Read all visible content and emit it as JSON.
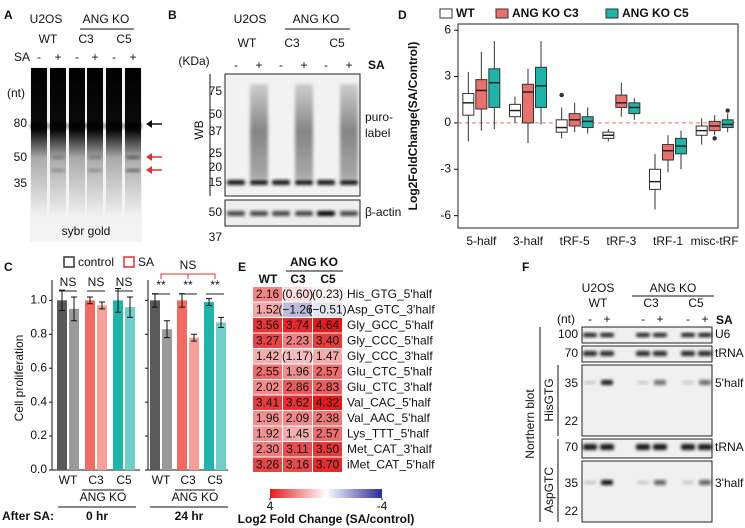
{
  "figure": {
    "panel_labels": [
      "A",
      "B",
      "C",
      "D",
      "E",
      "F"
    ],
    "gel_a": {
      "cell_line": "U2OS",
      "group": "ANG KO",
      "lanes": [
        "WT",
        "C3",
        "C5"
      ],
      "treatment": "SA",
      "signs": [
        "-",
        "+",
        "-",
        "+",
        "-",
        "+"
      ],
      "unit": "(nt)",
      "markers": [
        "80",
        "50",
        "35"
      ],
      "stain": "sybr gold"
    },
    "blot_b": {
      "cell_line": "U2OS",
      "group": "ANG KO",
      "lanes": [
        "WT",
        "C3",
        "C5"
      ],
      "treatment": "SA",
      "signs": [
        "-",
        "+",
        "-",
        "+",
        "-",
        "+"
      ],
      "unit": "(KDa)",
      "method": "WB",
      "markers": [
        "75",
        "50",
        "37",
        "25",
        "20",
        "15"
      ],
      "probe": [
        "puro-",
        "label"
      ],
      "loading_markers": [
        "50",
        "37"
      ],
      "loading": "β-actin"
    },
    "blot_f": {
      "cell_line": "U2OS",
      "group": "ANG KO",
      "lanes": [
        "WT",
        "C3",
        "C5"
      ],
      "treatment": "SA",
      "signs": [
        "-",
        "+",
        "-",
        "+",
        "-",
        "+"
      ],
      "unit": "(nt)",
      "method": "Northern blot",
      "probes": [
        "HisGTG",
        "AspGTC"
      ],
      "markers": [
        "100",
        "70",
        "35",
        "22",
        "70",
        "35",
        "22"
      ],
      "bands": [
        "U6",
        "tRNA",
        "5'half",
        "tRNA",
        "3'half"
      ]
    }
  },
  "chart_data": [
    {
      "type": "box",
      "ylabel": "Log2FoldChange(SA/Control)",
      "categories": [
        "5-half",
        "3-half",
        "tRF-5",
        "tRF-3",
        "tRF-1",
        "misc-tRF"
      ],
      "ylim": [
        -6.8,
        6.4
      ],
      "yticks": [
        6,
        3,
        0,
        -3,
        -6
      ],
      "hline": 0,
      "hline_color": "#e8716b",
      "series": [
        {
          "name": "WT",
          "color": "#ffffff",
          "low": [
            -1.2,
            0.0,
            -1.0,
            -1.2,
            -5.6,
            -1.4
          ],
          "q1": [
            0.5,
            0.4,
            -0.6,
            -1.0,
            -4.3,
            -0.8
          ],
          "median": [
            1.3,
            0.8,
            -0.3,
            -0.8,
            -3.8,
            -0.5
          ],
          "q3": [
            1.9,
            1.2,
            0.2,
            -0.6,
            -3.0,
            -0.2
          ],
          "high": [
            3.3,
            1.7,
            1.0,
            -0.4,
            -2.0,
            0.3
          ],
          "outliers": [
            [],
            [],
            [
              1.8
            ],
            [],
            [],
            []
          ]
        },
        {
          "name": "ANG KO C3",
          "color": "#e8716b",
          "low": [
            -0.5,
            -1.3,
            -0.6,
            0.4,
            -3.2,
            -0.8
          ],
          "q1": [
            0.9,
            0.0,
            -0.2,
            1.0,
            -2.4,
            -0.5
          ],
          "median": [
            2.1,
            2.0,
            0.2,
            1.3,
            -1.8,
            -0.2
          ],
          "q3": [
            2.8,
            2.5,
            0.6,
            1.8,
            -1.4,
            0.1
          ],
          "high": [
            4.6,
            3.5,
            1.3,
            2.6,
            -0.8,
            0.5
          ],
          "outliers": [
            [],
            [],
            [],
            [],
            [],
            [
              -1.0
            ]
          ]
        },
        {
          "name": "ANG KO C5",
          "color": "#1fb3aa",
          "low": [
            -0.4,
            -0.1,
            -0.7,
            0.2,
            -3.0,
            -0.6
          ],
          "q1": [
            1.0,
            1.0,
            -0.3,
            0.6,
            -2.0,
            -0.3
          ],
          "median": [
            2.6,
            2.4,
            0.1,
            1.0,
            -1.5,
            -0.1
          ],
          "q3": [
            3.5,
            3.6,
            0.4,
            1.3,
            -1.0,
            0.2
          ],
          "high": [
            5.3,
            5.3,
            1.0,
            1.6,
            -0.5,
            0.6
          ],
          "outliers": [
            [],
            [],
            [],
            [],
            [],
            [
              0.8
            ]
          ]
        }
      ]
    },
    {
      "type": "bar",
      "ylabel": "Cell proliferation",
      "categories": [
        "WT",
        "C3",
        "C5",
        "WT",
        "C3",
        "C5"
      ],
      "category_colors": [
        "#666666",
        "#e8716b",
        "#1fb3aa",
        "#666666",
        "#e8716b",
        "#1fb3aa"
      ],
      "ylim": [
        0,
        1.12
      ],
      "yticks": [
        {
          "value": 0,
          "label": "0.0"
        },
        0.2,
        0.4,
        0.6,
        0.8,
        {
          "value": 1,
          "label": "1.0"
        }
      ],
      "series": [
        {
          "name": "control",
          "color": "#333333",
          "colors": [
            "#5a5a5a",
            "#f26b63",
            "#1fb3aa",
            "#5a5a5a",
            "#f26b63",
            "#1fb3aa"
          ],
          "values": [
            1.0,
            1.0,
            1.0,
            1.0,
            1.0,
            0.99
          ],
          "errors": [
            0.06,
            0.02,
            0.07,
            0.04,
            0.04,
            0.02
          ]
        },
        {
          "name": "SA",
          "color": "#e03030",
          "colors": [
            "#9a9a9a",
            "#f5a09a",
            "#6fcfc8",
            "#9a9a9a",
            "#f5a09a",
            "#6fcfc8"
          ],
          "values": [
            0.95,
            0.97,
            0.96,
            0.83,
            0.78,
            0.87
          ],
          "errors": [
            0.07,
            0.02,
            0.06,
            0.05,
            0.02,
            0.03
          ]
        }
      ],
      "annotations": [
        "NS",
        "NS",
        "NS",
        "**",
        "**",
        "**",
        "NS"
      ],
      "annotation_colors": [
        "#222222",
        "#222222",
        "#222222",
        "#222222",
        "#222222",
        "#222222",
        "#e03030"
      ],
      "group_labels": [
        "ANG KO",
        "ANG KO"
      ],
      "time_label": "After SA:",
      "times": [
        "0 hr",
        "24 hr"
      ]
    },
    {
      "type": "heatmap",
      "column_group": "ANG KO",
      "columns": [
        "WT",
        "C3",
        "C5"
      ],
      "rows": [
        "His_GTG_5'half",
        "Asp_GTC_3'half",
        "Gly_GCC_5'half",
        "Gly_CCC_5'half",
        "Gly_CCC_3'half",
        "Glu_CTC_5'half",
        "Glu_CTC_3'half",
        "Val_CAC_5'half",
        "Val_AAC_5'half",
        "Lys_TTT_5'half",
        "Met_CAT_3'half",
        "iMet_CAT_5'half"
      ],
      "row_colors": [
        "#e03030",
        "#e03030",
        "#333333",
        "#333333",
        "#333333",
        "#333333",
        "#333333",
        "#333333",
        "#333333",
        "#333333",
        "#333333",
        "#333333"
      ],
      "values": [
        [
          2.16,
          0.6,
          0.23
        ],
        [
          1.52,
          -1.26,
          -0.51
        ],
        [
          3.56,
          3.74,
          4.64
        ],
        [
          3.27,
          2.23,
          3.4
        ],
        [
          1.42,
          1.17,
          1.47
        ],
        [
          2.55,
          1.96,
          2.57
        ],
        [
          2.02,
          2.86,
          2.83
        ],
        [
          3.41,
          3.62,
          4.32
        ],
        [
          1.96,
          2.09,
          2.38
        ],
        [
          1.92,
          1.45,
          2.57
        ],
        [
          2.3,
          3.11,
          3.5
        ],
        [
          3.26,
          3.16,
          3.7
        ]
      ],
      "value_labels": [
        [
          "2.16",
          "(0.60)",
          "(0.23)"
        ],
        [
          "1.52",
          "(−1.26)",
          "(−0.51)"
        ],
        [
          "3.56",
          "3.74",
          "4.64"
        ],
        [
          "3.27",
          "2.23",
          "3.40"
        ],
        [
          "1.42",
          "(1.17)",
          "1.47"
        ],
        [
          "2.55",
          "1.96",
          "2.57"
        ],
        [
          "2.02",
          "2.86",
          "2.83"
        ],
        [
          "3.41",
          "3.62",
          "4.32"
        ],
        [
          "1.96",
          "2.09",
          "2.38"
        ],
        [
          "1.92",
          "1.45",
          "2.57"
        ],
        [
          "2.30",
          "3.11",
          "3.50"
        ],
        [
          "3.26",
          "3.16",
          "3.70"
        ]
      ],
      "clim": [
        -4,
        4
      ],
      "cticks": [
        4,
        -4
      ],
      "high_color": "#e31a1c",
      "low_color": "#2b2b9a",
      "colorbar_label": "Log2 Fold Change (SA/control)"
    }
  ]
}
